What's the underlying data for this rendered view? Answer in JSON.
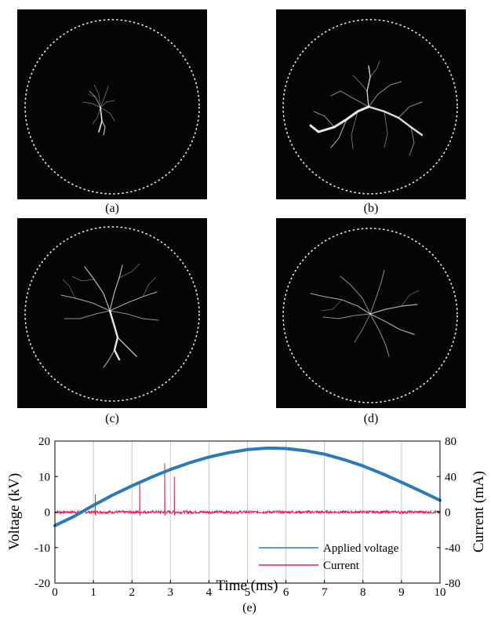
{
  "figure": {
    "panels": [
      {
        "label": "(a)",
        "pattern": "small sparse discharge near center"
      },
      {
        "label": "(b)",
        "pattern": "bright branching discharge, strong lower-left and right lobes"
      },
      {
        "label": "(c)",
        "pattern": "dense radial branching with bright lower channel"
      },
      {
        "label": "(d)",
        "pattern": "radial filamentary branches toward left and right"
      }
    ],
    "chart_caption": "(e)"
  },
  "chart_data": {
    "type": "line",
    "xlabel": "Time (ms)",
    "ylabel_left": "Voltage (kV)",
    "ylabel_right": "Current (mA)",
    "xlim": [
      0,
      10
    ],
    "ylim_left": [
      -20,
      20
    ],
    "ylim_right": [
      -80,
      80
    ],
    "x_ticks": [
      "0",
      "1",
      "2",
      "3",
      "4",
      "5",
      "6",
      "7",
      "8",
      "9",
      "10"
    ],
    "y_left_ticks": [
      "-20",
      "-10",
      "0",
      "10",
      "20"
    ],
    "y_right_ticks": [
      "-80",
      "-40",
      "0",
      "40",
      "80"
    ],
    "grid": "vertical",
    "legend_position": "lower-right",
    "series": [
      {
        "name": "Applied voltage",
        "axis": "left",
        "color": "#2c7bb6",
        "x": [
          0,
          0.5,
          1,
          1.5,
          2,
          2.5,
          3,
          3.5,
          4,
          4.5,
          5,
          5.5,
          5.7,
          6,
          6.5,
          7,
          7.5,
          8,
          8.5,
          9,
          9.5,
          10
        ],
        "y": [
          -3.8,
          -1.2,
          1.9,
          4.8,
          7.4,
          9.8,
          12.0,
          13.9,
          15.5,
          16.7,
          17.6,
          18.0,
          18.0,
          17.9,
          17.3,
          16.3,
          14.8,
          13.0,
          10.8,
          8.4,
          5.9,
          3.3
        ]
      },
      {
        "name": "Current",
        "axis": "right",
        "color": "#d62459",
        "baseline": 0,
        "noise_amplitude": 1.5,
        "spikes": [
          {
            "x": 1.05,
            "y": 20
          },
          {
            "x": 2.2,
            "y": 34
          },
          {
            "x": 2.85,
            "y": 55
          },
          {
            "x": 3.1,
            "y": 40
          }
        ]
      }
    ]
  }
}
